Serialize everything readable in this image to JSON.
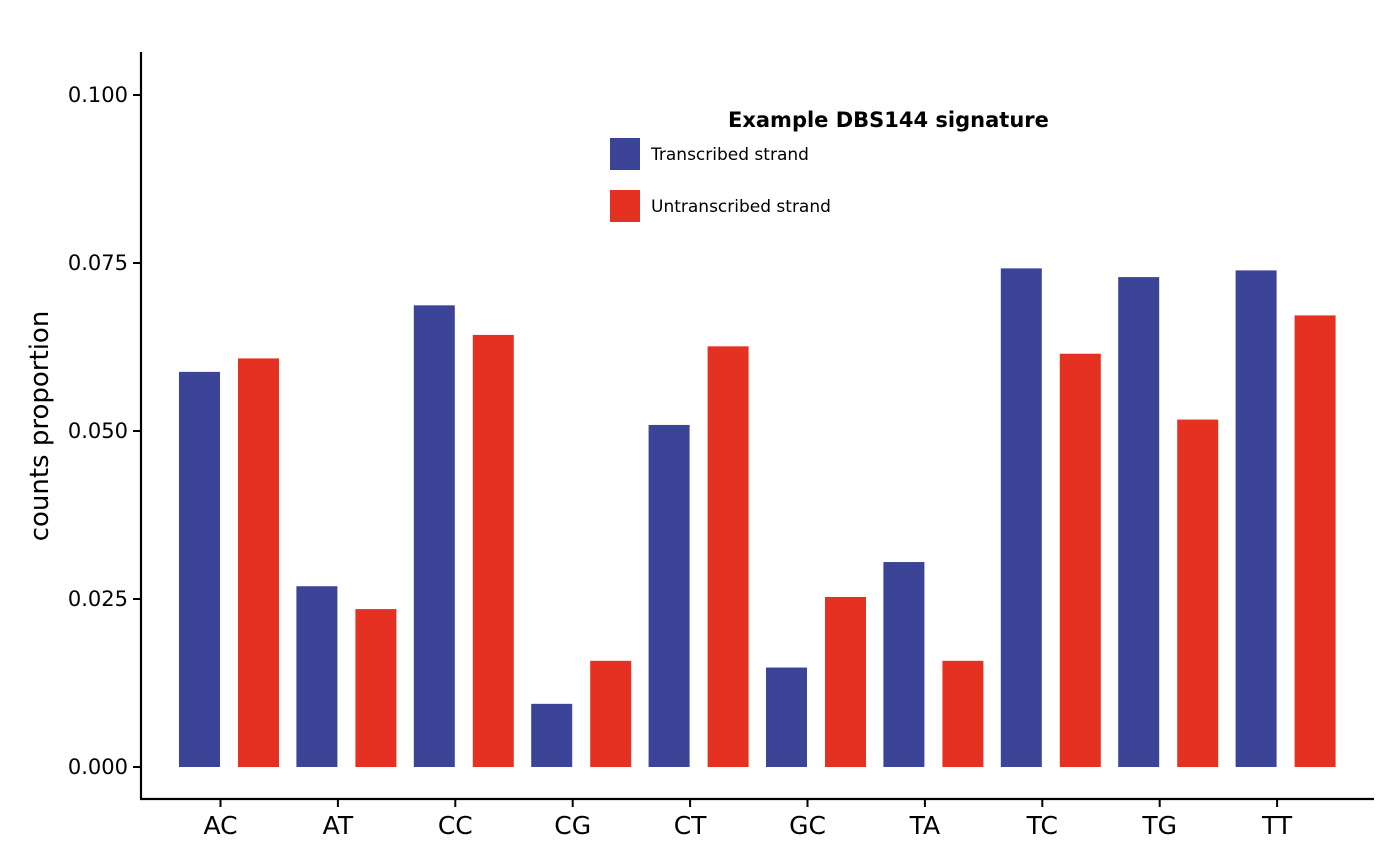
{
  "chart_data": {
    "type": "bar",
    "ylabel": "counts proportion",
    "xlabel": "",
    "ylim": [
      -0.005,
      0.106
    ],
    "yticks": [
      0.0,
      0.025,
      0.05,
      0.075,
      0.1
    ],
    "ytick_labels": [
      "0.000",
      "0.025",
      "0.050",
      "0.075",
      "0.100"
    ],
    "categories": [
      "AC",
      "AT",
      "CC",
      "CG",
      "CT",
      "GC",
      "TA",
      "TC",
      "TG",
      "TT"
    ],
    "legend": {
      "title": "Example DBS144 signature",
      "placement": "top-center"
    },
    "series": [
      {
        "name": "Transcribed strand",
        "color": "#3B4496",
        "values": [
          0.0588,
          0.0269,
          0.0687,
          0.0094,
          0.0509,
          0.0148,
          0.0305,
          0.0742,
          0.0729,
          0.0739
        ]
      },
      {
        "name": "Untranscribed strand",
        "color": "#E53122",
        "values": [
          0.0608,
          0.0235,
          0.0643,
          0.0158,
          0.0626,
          0.0253,
          0.0158,
          0.0615,
          0.0517,
          0.0672
        ]
      }
    ]
  }
}
